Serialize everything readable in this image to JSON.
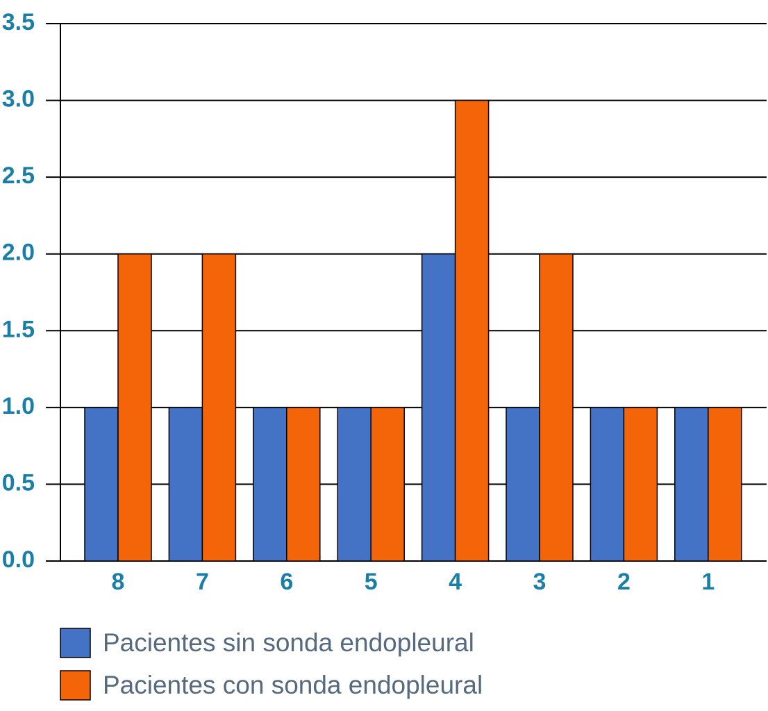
{
  "chart_data": {
    "type": "bar",
    "categories": [
      "8",
      "7",
      "6",
      "5",
      "4",
      "3",
      "2",
      "1"
    ],
    "series": [
      {
        "name": "Pacientes sin sonda endopleural",
        "color": "#4472c4",
        "values": [
          1,
          1,
          1,
          1,
          2,
          1,
          1,
          1
        ]
      },
      {
        "name": "Pacientes con sonda endopleural",
        "color": "#f4650a",
        "values": [
          2,
          2,
          1,
          1,
          3,
          2,
          1,
          1
        ]
      }
    ],
    "ylim": [
      0,
      3.5
    ],
    "yticks": [
      {
        "value": 0,
        "label": "0.0"
      },
      0.5,
      {
        "value": 1,
        "label": "1.0"
      },
      1.5,
      {
        "value": 2,
        "label": "2.0"
      },
      2.5,
      {
        "value": 3,
        "label": "3.0"
      },
      3.5
    ],
    "grid": true,
    "legend": "bottom"
  }
}
